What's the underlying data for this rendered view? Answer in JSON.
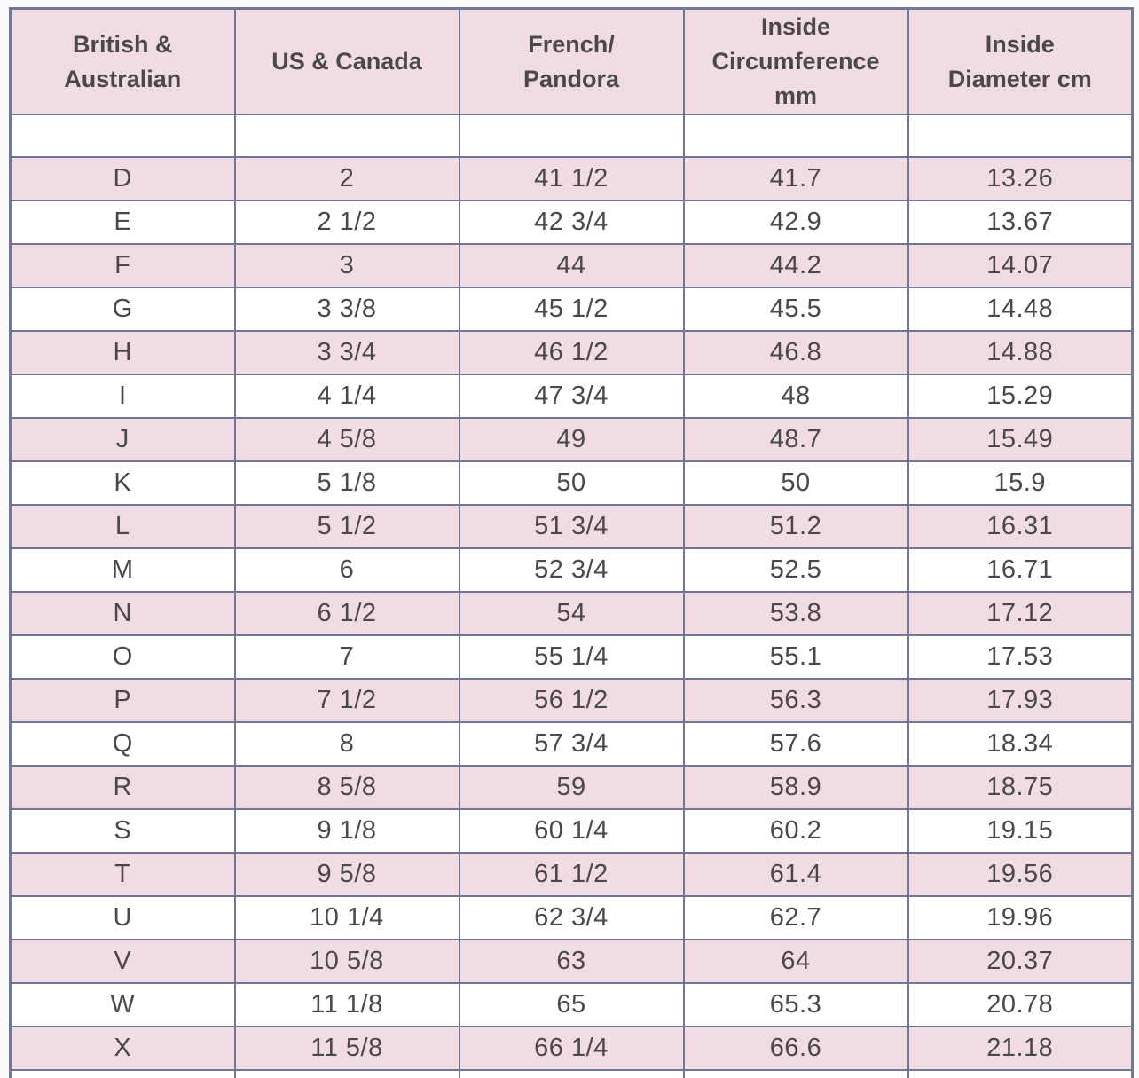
{
  "chart_data": {
    "type": "table",
    "headers": [
      "British &\nAustralian",
      "US & Canada",
      "French/\nPandora",
      "Inside\nCircumference\nmm",
      "Inside\nDiameter cm"
    ],
    "rows": [
      [
        "D",
        "2",
        "41 1/2",
        "41.7",
        "13.26"
      ],
      [
        "E",
        "2 1/2",
        "42 3/4",
        "42.9",
        "13.67"
      ],
      [
        "F",
        "3",
        "44",
        "44.2",
        "14.07"
      ],
      [
        "G",
        "3 3/8",
        "45 1/2",
        "45.5",
        "14.48"
      ],
      [
        "H",
        "3 3/4",
        "46 1/2",
        "46.8",
        "14.88"
      ],
      [
        "I",
        "4 1/4",
        "47 3/4",
        "48",
        "15.29"
      ],
      [
        "J",
        "4 5/8",
        "49",
        "48.7",
        "15.49"
      ],
      [
        "K",
        "5 1/8",
        "50",
        "50",
        "15.9"
      ],
      [
        "L",
        "5 1/2",
        "51 3/4",
        "51.2",
        "16.31"
      ],
      [
        "M",
        "6",
        "52 3/4",
        "52.5",
        "16.71"
      ],
      [
        "N",
        "6 1/2",
        "54",
        "53.8",
        "17.12"
      ],
      [
        "O",
        "7",
        "55 1/4",
        "55.1",
        "17.53"
      ],
      [
        "P",
        "7 1/2",
        "56 1/2",
        "56.3",
        "17.93"
      ],
      [
        "Q",
        "8",
        "57 3/4",
        "57.6",
        "18.34"
      ],
      [
        "R",
        "8 5/8",
        "59",
        "58.9",
        "18.75"
      ],
      [
        "S",
        "9 1/8",
        "60 1/4",
        "60.2",
        "19.15"
      ],
      [
        "T",
        "9 5/8",
        "61 1/2",
        "61.4",
        "19.56"
      ],
      [
        "U",
        "10 1/4",
        "62 3/4",
        "62.7",
        "19.96"
      ],
      [
        "V",
        "10 5/8",
        "63",
        "64",
        "20.37"
      ],
      [
        "W",
        "11 1/8",
        "65",
        "65.3",
        "20.78"
      ],
      [
        "X",
        "11 5/8",
        "66 1/4",
        "66.6",
        "21.18"
      ]
    ]
  },
  "colors": {
    "row_pink": "#f2dce3",
    "row_white": "#ffffff",
    "border": "#6f7795",
    "text": "#4a484c"
  }
}
